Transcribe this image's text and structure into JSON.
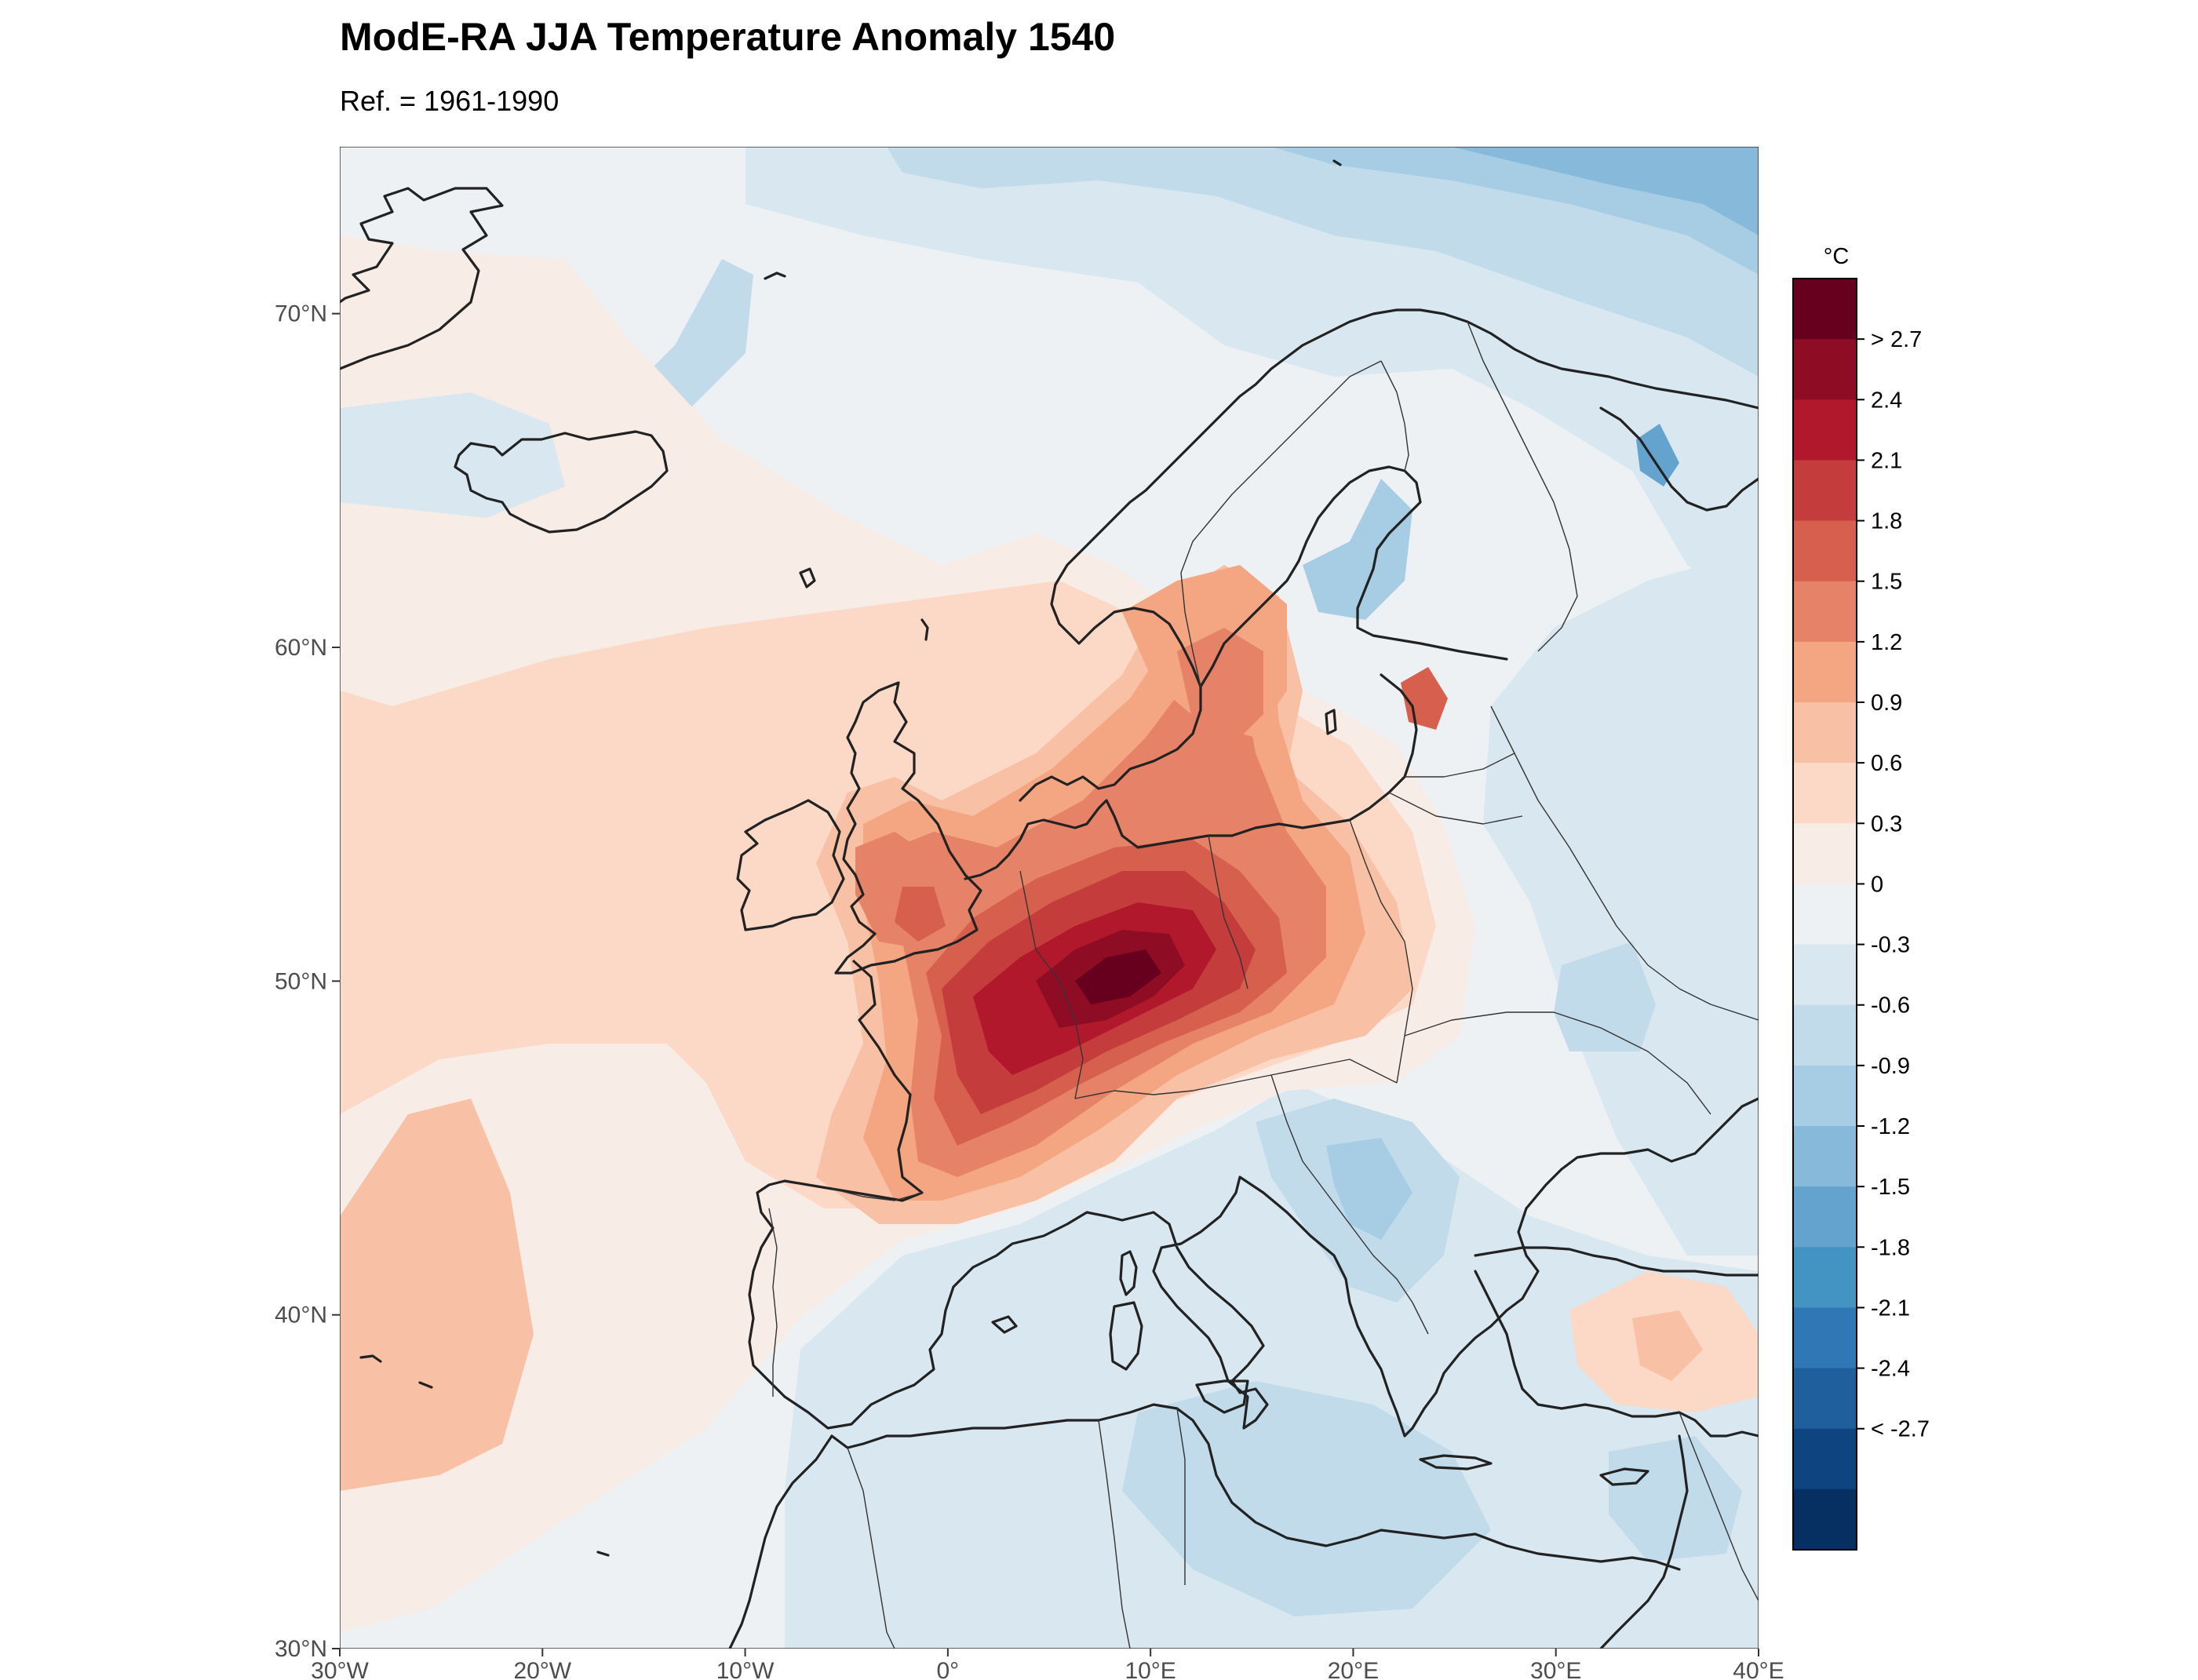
{
  "title": "ModE-RA JJA Temperature Anomaly 1540",
  "subtitle": "Ref. = 1961-1990",
  "colorbar": {
    "unit": "°C",
    "labels": [
      "> 2.7",
      "2.4",
      "2.1",
      "1.8",
      "1.5",
      "1.2",
      "0.9",
      "0.6",
      "0.3",
      "0",
      "-0.3",
      "-0.6",
      "-0.9",
      "-1.2",
      "-1.5",
      "-1.8",
      "-2.1",
      "-2.4",
      "< -2.7"
    ],
    "colors": [
      "#67001f",
      "#8f0d24",
      "#b2182b",
      "#c43c3c",
      "#d6604d",
      "#e58267",
      "#f4a582",
      "#f8c0a4",
      "#fbd9c6",
      "#f8ece6",
      "#edf1f4",
      "#d8e7f0",
      "#c1dbeb",
      "#a6cde3",
      "#86b9da",
      "#63a3cd",
      "#4393c3",
      "#2f78b5",
      "#205f9e",
      "#0e4480",
      "#053061"
    ]
  },
  "map": {
    "lon_ticks": [
      "30°W",
      "20°W",
      "10°W",
      "0°",
      "10°E",
      "20°E",
      "30°E",
      "40°E"
    ],
    "lat_ticks": [
      "30°N",
      "40°N",
      "50°N",
      "60°N",
      "70°N"
    ],
    "lon_range": [
      -30,
      40
    ],
    "lat_range": [
      30,
      75
    ],
    "background_color": "#edf1f4",
    "coast_color": "#222222"
  }
}
